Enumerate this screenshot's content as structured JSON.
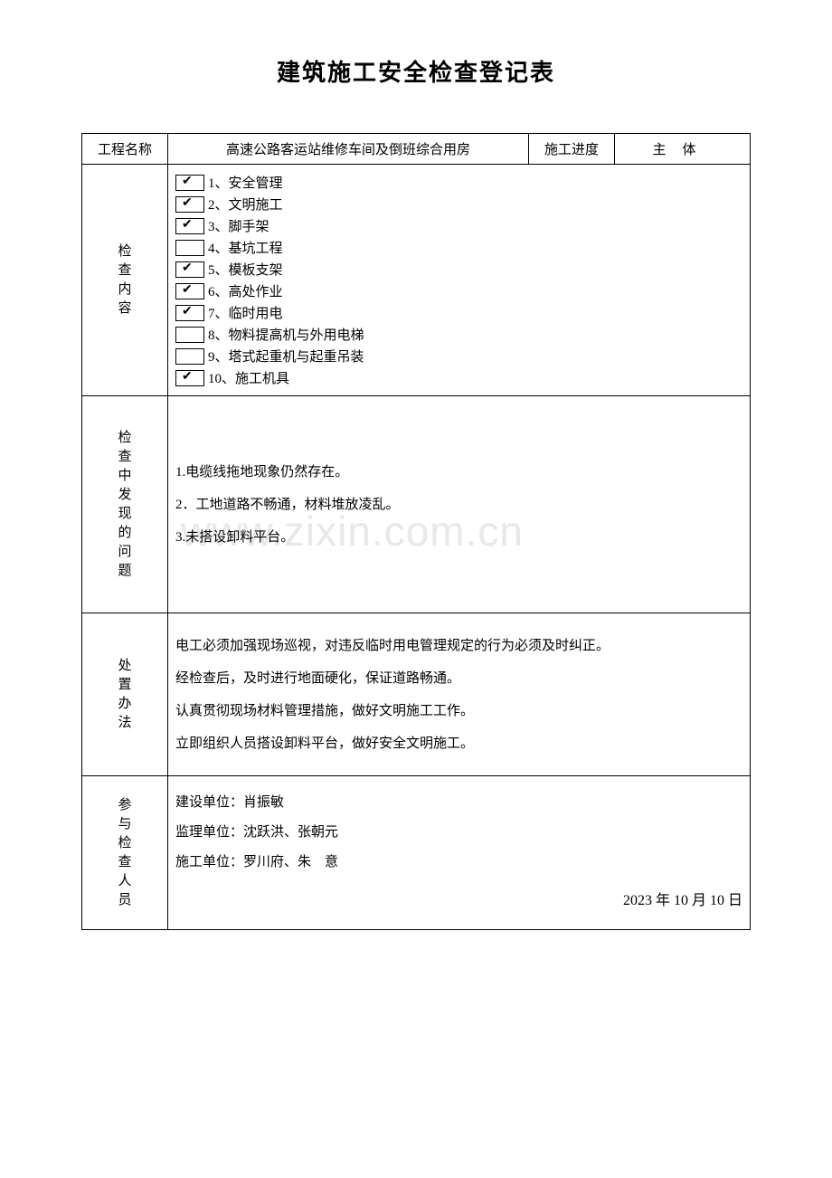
{
  "document": {
    "title": "建筑施工安全检查登记表",
    "watermark": "www.zixin.com.cn"
  },
  "header": {
    "project_label": "工程名称",
    "project_name": "高速公路客运站维修车间及倒班综合用房",
    "progress_label": "施工进度",
    "progress_value": "主体"
  },
  "checklist": {
    "label": "检查内容",
    "items": [
      {
        "num": "1、",
        "text": "安全管理",
        "checked": true
      },
      {
        "num": "2、",
        "text": "文明施工",
        "checked": true
      },
      {
        "num": "3、",
        "text": "脚手架",
        "checked": true
      },
      {
        "num": "4、",
        "text": "基坑工程",
        "checked": false
      },
      {
        "num": "5、",
        "text": "模板支架",
        "checked": true
      },
      {
        "num": "6、",
        "text": "高处作业",
        "checked": true
      },
      {
        "num": "7、",
        "text": "临时用电",
        "checked": true
      },
      {
        "num": "8、",
        "text": "物料提高机与外用电梯",
        "checked": false
      },
      {
        "num": "9、",
        "text": "塔式起重机与起重吊装",
        "checked": false
      },
      {
        "num": "10、",
        "text": "施工机具",
        "checked": true
      }
    ]
  },
  "issues": {
    "label": "检查中发现的问题",
    "lines": [
      "1.电缆线拖地现象仍然存在。",
      "2．工地道路不畅通，材料堆放凌乱。",
      "3.未搭设卸料平台。"
    ]
  },
  "measures": {
    "label": "处置办法",
    "lines": [
      "电工必须加强现场巡视，对违反临时用电管理规定的行为必须及时纠正。",
      "经检查后，及时进行地面硬化，保证道路畅通。",
      "认真贯彻现场材料管理措施，做好文明施工工作。",
      "立即组织人员搭设卸料平台，做好安全文明施工。"
    ]
  },
  "participants": {
    "label": "参与检查人员",
    "lines": [
      "建设单位：肖振敏",
      "监理单位：沈跃洪、张朝元",
      "施工单位：罗川府、朱　意"
    ],
    "date": "2023 年 10 月 10 日"
  },
  "colors": {
    "background": "#ffffff",
    "text": "#000000",
    "border": "#000000",
    "watermark": "#e8e8e8"
  },
  "typography": {
    "title_fontsize": 26,
    "body_fontsize": 15,
    "font_family": "SimSun"
  }
}
